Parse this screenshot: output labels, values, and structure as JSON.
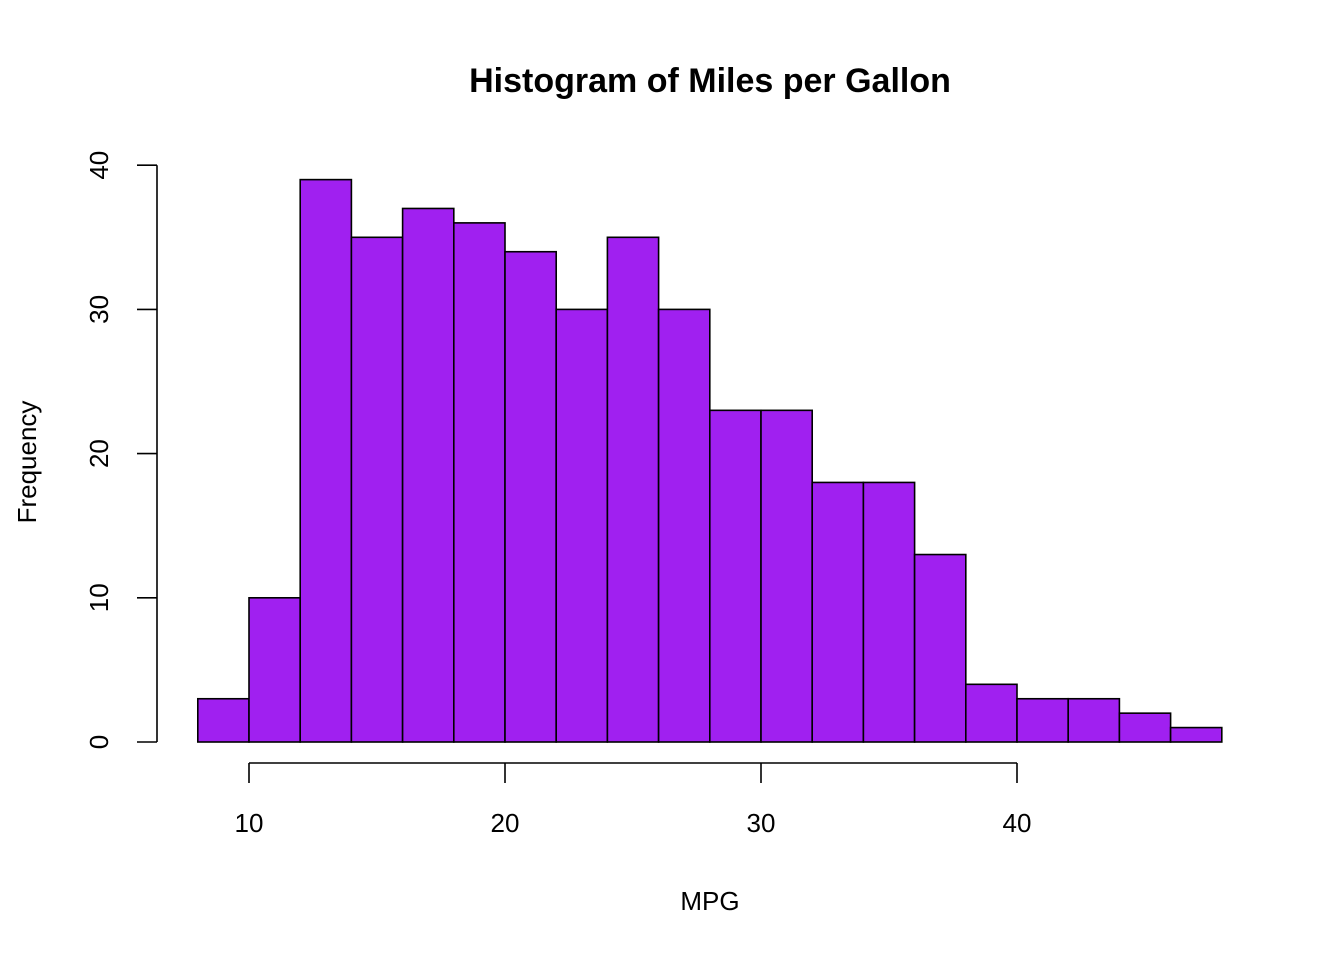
{
  "chart_data": {
    "type": "bar",
    "title": "Histogram of Miles per Gallon",
    "xlabel": "MPG",
    "ylabel": "Frequency",
    "bar_color": "#A020F0",
    "bins": [
      {
        "x0": 8,
        "x1": 10,
        "count": 3
      },
      {
        "x0": 10,
        "x1": 12,
        "count": 10
      },
      {
        "x0": 12,
        "x1": 14,
        "count": 39
      },
      {
        "x0": 14,
        "x1": 16,
        "count": 35
      },
      {
        "x0": 16,
        "x1": 18,
        "count": 37
      },
      {
        "x0": 18,
        "x1": 20,
        "count": 36
      },
      {
        "x0": 20,
        "x1": 22,
        "count": 34
      },
      {
        "x0": 22,
        "x1": 24,
        "count": 30
      },
      {
        "x0": 24,
        "x1": 26,
        "count": 35
      },
      {
        "x0": 26,
        "x1": 28,
        "count": 30
      },
      {
        "x0": 28,
        "x1": 30,
        "count": 23
      },
      {
        "x0": 30,
        "x1": 32,
        "count": 23
      },
      {
        "x0": 32,
        "x1": 34,
        "count": 18
      },
      {
        "x0": 34,
        "x1": 36,
        "count": 18
      },
      {
        "x0": 36,
        "x1": 38,
        "count": 13
      },
      {
        "x0": 38,
        "x1": 40,
        "count": 4
      },
      {
        "x0": 40,
        "x1": 42,
        "count": 3
      },
      {
        "x0": 42,
        "x1": 44,
        "count": 3
      },
      {
        "x0": 44,
        "x1": 46,
        "count": 2
      },
      {
        "x0": 46,
        "x1": 48,
        "count": 1
      }
    ],
    "xticks": [
      10,
      20,
      30,
      40
    ],
    "yticks": [
      0,
      10,
      20,
      30,
      40
    ],
    "xtick_labels": [
      "10",
      "20",
      "30",
      "40"
    ],
    "ytick_labels": [
      "0",
      "10",
      "20",
      "30",
      "40"
    ],
    "grid": false
  }
}
